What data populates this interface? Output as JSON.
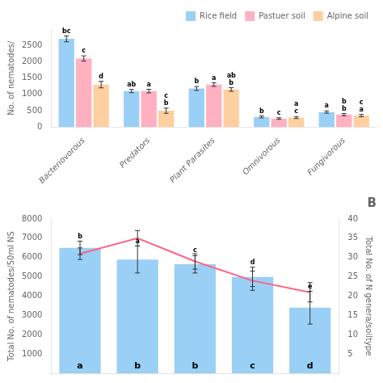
{
  "chart_data": [
    {
      "type": "bar",
      "categories": [
        "Bacteriovorous",
        "Predators",
        "Plant Parasites",
        "Omnivorous",
        "Fungivorous"
      ],
      "series": [
        {
          "name": "Rice field",
          "values": [
            2700,
            1100,
            1180,
            310,
            460
          ],
          "errors": [
            90,
            50,
            60,
            30,
            35
          ],
          "annotations": [
            [
              "bc"
            ],
            [
              "ab"
            ],
            [
              "b"
            ],
            [
              "b"
            ],
            [
              "a"
            ]
          ]
        },
        {
          "name": "Pastuer soil",
          "values": [
            2100,
            1100,
            1300,
            260,
            380
          ],
          "errors": [
            80,
            55,
            55,
            25,
            35
          ],
          "annotations": [
            [
              "c"
            ],
            [
              "a"
            ],
            [
              "a"
            ],
            [
              "c"
            ],
            [
              "b",
              "b"
            ]
          ]
        },
        {
          "name": "Alpine soil",
          "values": [
            1300,
            500,
            1150,
            290,
            350
          ],
          "errors": [
            100,
            80,
            55,
            30,
            35
          ],
          "annotations": [
            [
              "d"
            ],
            [
              "b",
              "c"
            ],
            [
              "b",
              "ab"
            ],
            [
              "c",
              "a"
            ],
            [
              "a",
              "c"
            ]
          ]
        }
      ],
      "ylabel": "No. of nematodes/",
      "ylim": [
        0,
        3000
      ],
      "yticks": [
        0,
        500,
        1000,
        1500,
        2000,
        2500
      ],
      "legend": "upper right",
      "grid": false
    },
    {
      "type": "bar",
      "title": "B",
      "categories": [
        null,
        null,
        null,
        null,
        null
      ],
      "series": [
        {
          "type": "bar",
          "values": [
            6500,
            5900,
            5650,
            5000,
            3400
          ],
          "errors": [
            350,
            700,
            450,
            500,
            850
          ],
          "annotations": [
            "b",
            "a",
            "c",
            "d",
            "e"
          ],
          "base_annotations": [
            "a",
            "b",
            "b",
            "c",
            "d"
          ]
        },
        {
          "type": "line",
          "axis": "y2",
          "values": [
            31,
            35,
            29,
            24,
            21
          ],
          "errors": [
            1.5,
            2.0,
            2.0,
            2.5,
            2.5
          ]
        }
      ],
      "ylabel": "Total No. of nematodes/50ml NS",
      "y2label": "Total No. of N genera/soiltype",
      "ylim": [
        0,
        8000
      ],
      "yticks": [
        1000,
        2000,
        3000,
        4000,
        5000,
        6000,
        7000,
        8000
      ],
      "y2lim": [
        0,
        40
      ],
      "y2ticks": [
        5,
        10,
        15,
        20,
        25,
        30,
        35,
        40
      ],
      "grid": false
    }
  ]
}
